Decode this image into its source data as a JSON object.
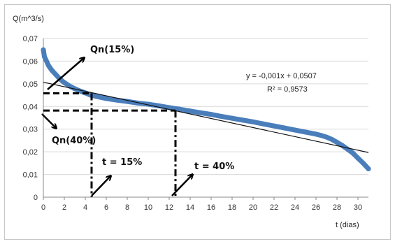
{
  "chart_data": {
    "type": "line",
    "title": "",
    "ylabel": "Q(m^3/s)",
    "xlabel": "t (dias)",
    "xlim": [
      0,
      31
    ],
    "ylim": [
      0,
      0.07
    ],
    "x_ticks": [
      "0",
      "2",
      "4",
      "6",
      "8",
      "10",
      "12",
      "14",
      "16",
      "18",
      "20",
      "22",
      "24",
      "26",
      "28",
      "30"
    ],
    "y_ticks": [
      "0",
      "0,01",
      "0,02",
      "0,03",
      "0,04",
      "0,05",
      "0,06",
      "0,07"
    ],
    "series": [
      {
        "color": "#4a7ebb",
        "x": [
          0,
          0.1,
          0.3,
          0.5,
          0.8,
          1.2,
          1.6,
          2,
          2.5,
          3,
          3.5,
          4,
          4.5,
          5,
          6,
          7,
          8,
          9,
          10,
          11,
          12,
          13,
          14,
          15,
          16,
          17,
          18,
          19,
          20,
          21,
          22,
          23,
          24,
          25,
          26,
          26.5,
          27,
          27.5,
          28,
          28.5,
          29,
          29.5,
          30,
          30.5,
          31
        ],
        "y": [
          0.065,
          0.062,
          0.06,
          0.058,
          0.056,
          0.054,
          0.052,
          0.0505,
          0.049,
          0.0478,
          0.0468,
          0.046,
          0.045,
          0.0445,
          0.0435,
          0.0428,
          0.0422,
          0.0415,
          0.041,
          0.0403,
          0.0395,
          0.0388,
          0.038,
          0.0372,
          0.0365,
          0.0356,
          0.0348,
          0.034,
          0.0332,
          0.0323,
          0.0314,
          0.0305,
          0.0296,
          0.0287,
          0.0278,
          0.0272,
          0.0265,
          0.0255,
          0.0242,
          0.0228,
          0.0212,
          0.0195,
          0.0172,
          0.015,
          0.0125
        ]
      }
    ],
    "trendline": {
      "slope": -0.001,
      "intercept": 0.0507,
      "color": "#111111"
    },
    "equation_text": "y = -0,001x + 0,0507",
    "r2_text": "R² = 0,9573",
    "annotations": {
      "qn15_label": "Qn(15%)",
      "qn40_label": "Qn(40%)",
      "t15_label": "t = 15%",
      "t40_label": "t = 40%"
    },
    "markers": {
      "t15": {
        "x": 4.6,
        "y": 0.0458
      },
      "t40": {
        "x": 12.6,
        "y": 0.0382
      }
    },
    "grid": true,
    "legend": "none"
  }
}
